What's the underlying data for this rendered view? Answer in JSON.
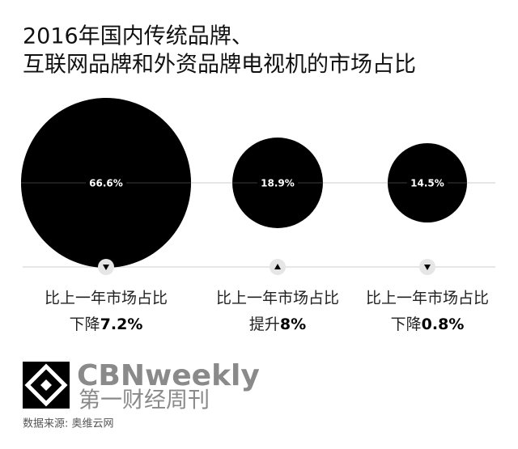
{
  "chart_data": {
    "type": "bubble",
    "title": [
      "2016年国内传统品牌、",
      "互联网品牌和外资品牌电视机的市场占比"
    ],
    "values": [
      66.6,
      18.9,
      14.5
    ],
    "value_labels": [
      "66.6%",
      "18.9%",
      "14.5%"
    ],
    "color": "#000000",
    "changes": [
      {
        "label": "比上一年市场占比",
        "direction": "下降",
        "value": 7.2,
        "value_label": "7.2%",
        "arrow": "down"
      },
      {
        "label": "比上一年市场占比",
        "direction": "提升",
        "value": 8,
        "value_label": "8%",
        "arrow": "up"
      },
      {
        "label": "比上一年市场占比",
        "direction": "下降",
        "value": 0.8,
        "value_label": "0.8%",
        "arrow": "down"
      }
    ]
  },
  "footer": {
    "brand": "CBNweekly",
    "brand_cn": "第一财经周刊",
    "source": "数据来源: 奥维云网"
  }
}
